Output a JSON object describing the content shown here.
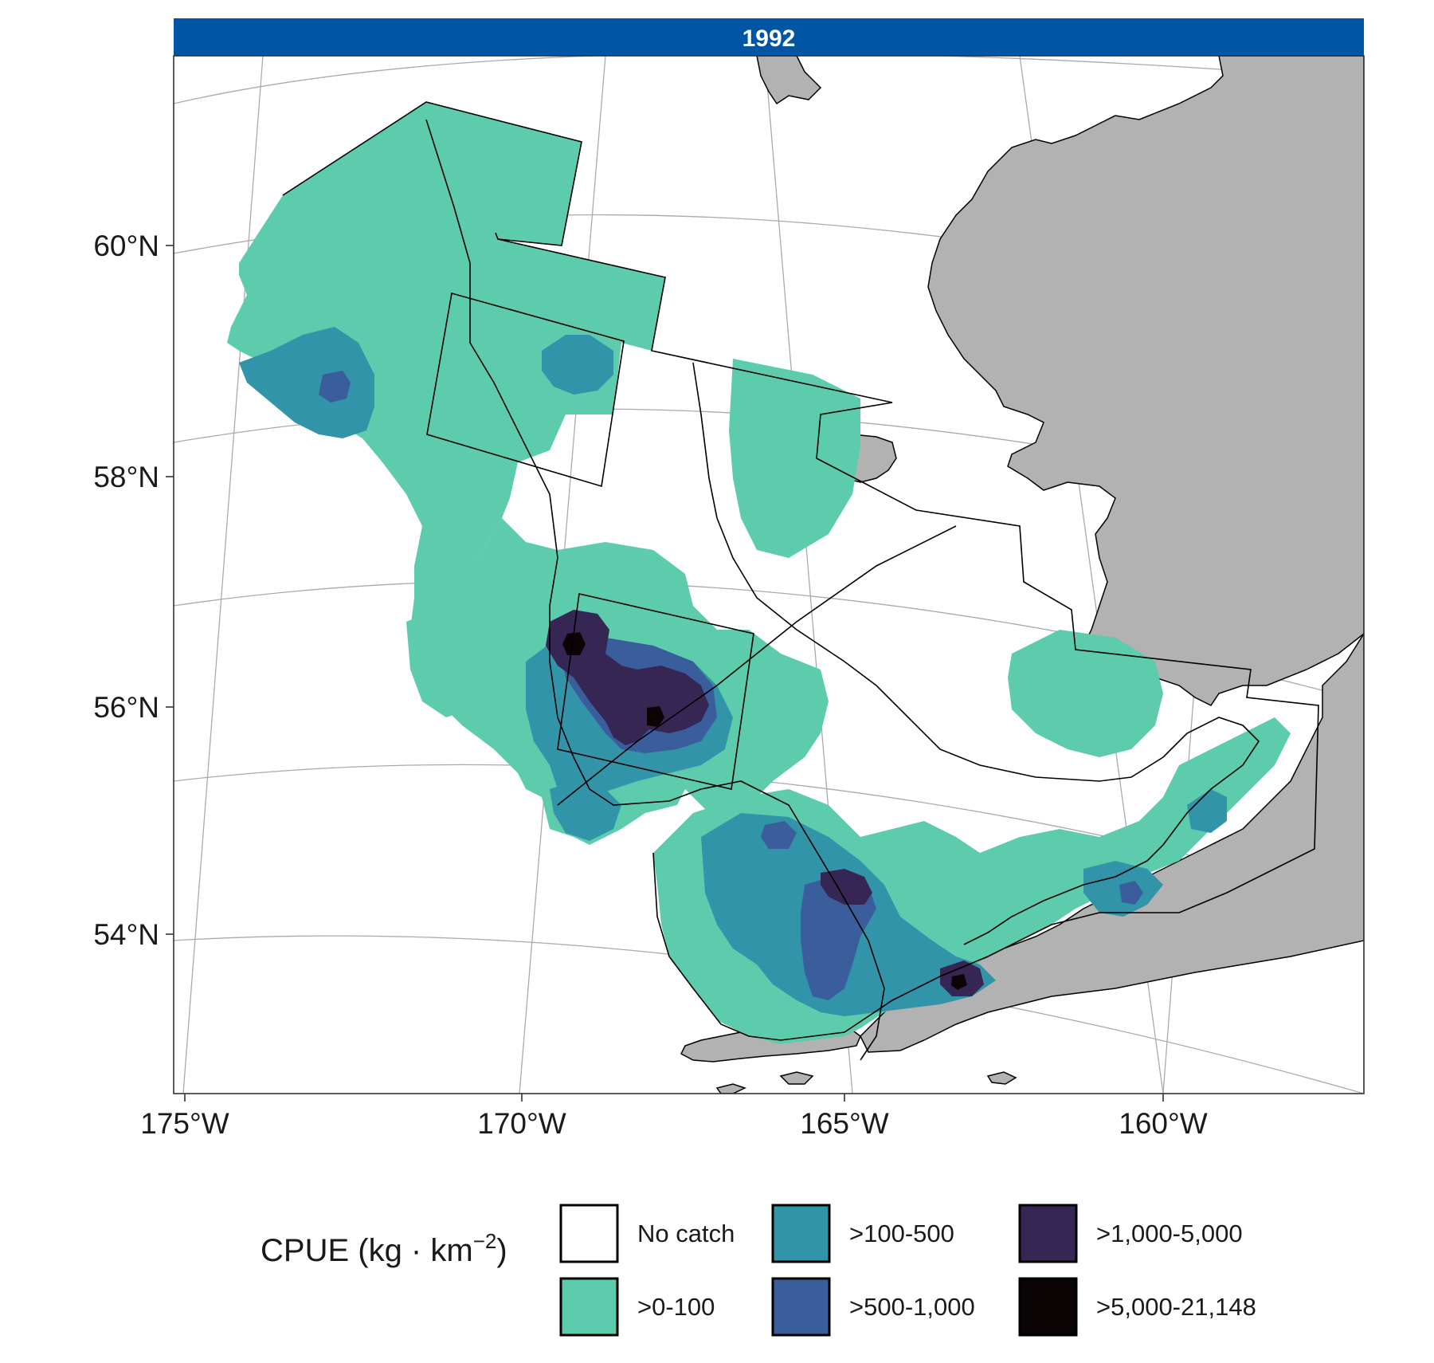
{
  "panel": {
    "strip_title": "1992",
    "strip_color": "#0055A4"
  },
  "axes": {
    "y_ticks": [
      "60°N",
      "58°N",
      "56°N",
      "54°N"
    ],
    "x_ticks": [
      "175°W",
      "170°W",
      "165°W",
      "160°W"
    ]
  },
  "colors": {
    "land": "#B2B2B2",
    "no_catch": "#FFFFFF",
    "c1": "#5DCCAC",
    "c2": "#3294A8",
    "c3": "#3A5D9C",
    "c4": "#362654",
    "c5": "#0B0405",
    "graticule": "#AAAAAA"
  },
  "legend": {
    "title": "CPUE (kg · km",
    "title_sup": "−2",
    "title_close": ")",
    "items": [
      {
        "label": "No catch",
        "color_key": "no_catch"
      },
      {
        "label": ">0-100",
        "color_key": "c1"
      },
      {
        "label": ">100-500",
        "color_key": "c2"
      },
      {
        "label": ">500-1,000",
        "color_key": "c3"
      },
      {
        "label": ">1,000-5,000",
        "color_key": "c4"
      },
      {
        "label": ">5,000-21,148",
        "color_key": "c5"
      }
    ]
  }
}
